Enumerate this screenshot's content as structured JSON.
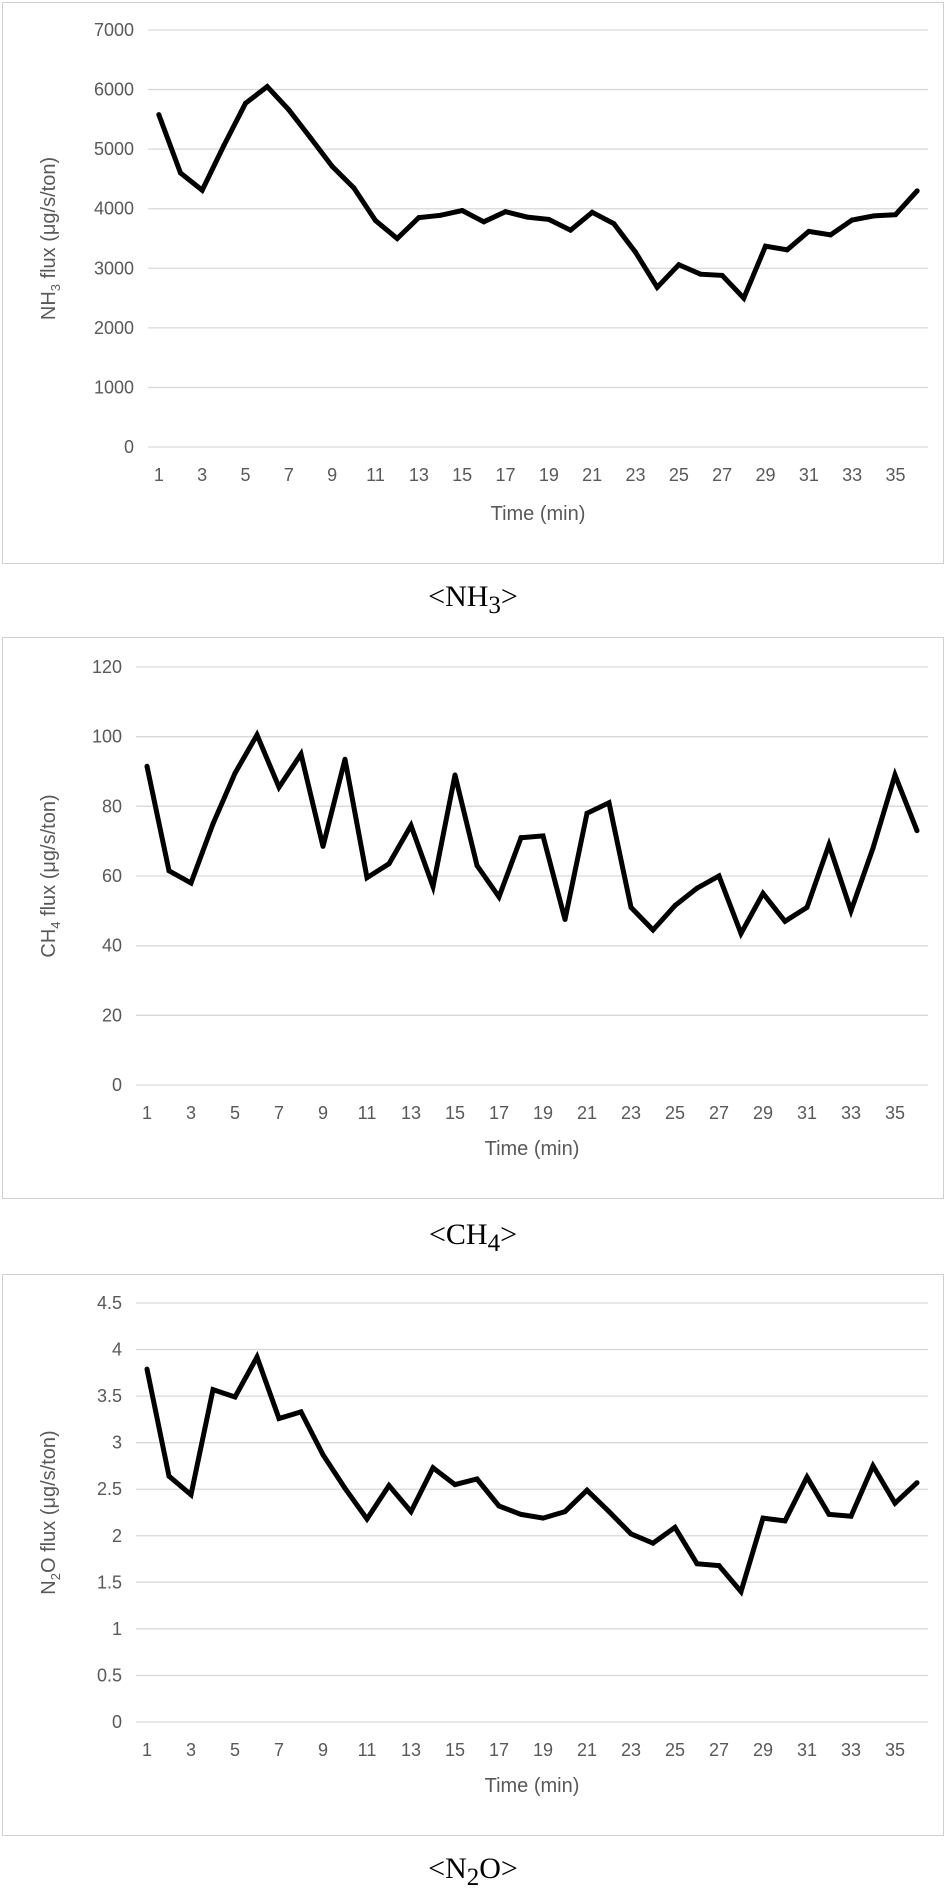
{
  "chart_data": [
    {
      "type": "line",
      "caption": {
        "before": "<NH",
        "sub": "3",
        "after": ">"
      },
      "xlabel": "Time (min)",
      "ylabel": {
        "before": "NH",
        "sub": "3",
        "after": " flux (μg/s/ton)"
      },
      "x": [
        1,
        2,
        3,
        4,
        5,
        6,
        7,
        8,
        9,
        10,
        11,
        12,
        13,
        14,
        15,
        16,
        17,
        18,
        19,
        20,
        21,
        22,
        23,
        24,
        25,
        26,
        27,
        28,
        29,
        30,
        31,
        32,
        33,
        34,
        35,
        36
      ],
      "x_tick_labels": [
        "1",
        "3",
        "5",
        "7",
        "9",
        "11",
        "13",
        "15",
        "17",
        "19",
        "21",
        "23",
        "25",
        "27",
        "29",
        "31",
        "33",
        "35"
      ],
      "ylim": [
        0,
        7000
      ],
      "y_ticks": [
        0,
        1000,
        2000,
        3000,
        4000,
        5000,
        6000,
        7000
      ],
      "grid": true,
      "line_color": "#000000",
      "series": [
        {
          "values": [
            5580,
            4600,
            4310,
            5060,
            5770,
            6050,
            5660,
            5190,
            4710,
            4350,
            3800,
            3500,
            3850,
            3890,
            3970,
            3780,
            3950,
            3860,
            3820,
            3640,
            3940,
            3750,
            3270,
            2680,
            3060,
            2900,
            2880,
            2500,
            3370,
            3310,
            3620,
            3560,
            3810,
            3880,
            3900,
            4300
          ]
        }
      ]
    },
    {
      "type": "line",
      "caption": {
        "before": "<CH",
        "sub": "4",
        "after": ">"
      },
      "xlabel": "Time (min)",
      "ylabel": {
        "before": "CH",
        "sub": "4",
        "after": " flux (μg/s/ton)"
      },
      "x": [
        1,
        2,
        3,
        4,
        5,
        6,
        7,
        8,
        9,
        10,
        11,
        12,
        13,
        14,
        15,
        16,
        17,
        18,
        19,
        20,
        21,
        22,
        23,
        24,
        25,
        26,
        27,
        28,
        29,
        30,
        31,
        32,
        33,
        34,
        35,
        36
      ],
      "x_tick_labels": [
        "1",
        "3",
        "5",
        "7",
        "9",
        "11",
        "13",
        "15",
        "17",
        "19",
        "21",
        "23",
        "25",
        "27",
        "29",
        "31",
        "33",
        "35"
      ],
      "ylim": [
        0,
        120
      ],
      "y_ticks": [
        0,
        20,
        40,
        60,
        80,
        100,
        120
      ],
      "grid": true,
      "line_color": "#000000",
      "series": [
        {
          "values": [
            91.5,
            61.5,
            58,
            75,
            89.5,
            100.5,
            85.5,
            95,
            68.5,
            93.5,
            59.5,
            63.5,
            74.5,
            57,
            89,
            63,
            54,
            71,
            71.5,
            47.5,
            78,
            81,
            51,
            44.5,
            51.5,
            56.5,
            60,
            43.5,
            55,
            47,
            51,
            69,
            50,
            68,
            89,
            73
          ]
        }
      ]
    },
    {
      "type": "line",
      "caption": {
        "before": "<N",
        "sub": "2",
        "after": "O>"
      },
      "xlabel": "Time (min)",
      "ylabel": {
        "before": "N",
        "sub": "2",
        "after": "O flux (μg/s/ton)"
      },
      "x": [
        1,
        2,
        3,
        4,
        5,
        6,
        7,
        8,
        9,
        10,
        11,
        12,
        13,
        14,
        15,
        16,
        17,
        18,
        19,
        20,
        21,
        22,
        23,
        24,
        25,
        26,
        27,
        28,
        29,
        30,
        31,
        32,
        33,
        34,
        35,
        36
      ],
      "x_tick_labels": [
        "1",
        "3",
        "5",
        "7",
        "9",
        "11",
        "13",
        "15",
        "17",
        "19",
        "21",
        "23",
        "25",
        "27",
        "29",
        "31",
        "33",
        "35"
      ],
      "ylim": [
        0,
        4.5
      ],
      "y_ticks": [
        0,
        0.5,
        1,
        1.5,
        2,
        2.5,
        3,
        3.5,
        4,
        4.5
      ],
      "y_tick_labels": [
        "0",
        "0.5",
        "1",
        "1.5",
        "2",
        "2.5",
        "3",
        "3.5",
        "4",
        "4.5"
      ],
      "grid": true,
      "line_color": "#000000",
      "series": [
        {
          "values": [
            3.79,
            2.64,
            2.44,
            3.57,
            3.49,
            3.92,
            3.26,
            3.33,
            2.87,
            2.51,
            2.18,
            2.54,
            2.26,
            2.73,
            2.55,
            2.61,
            2.32,
            2.23,
            2.19,
            2.26,
            2.49,
            2.26,
            2.02,
            1.92,
            2.09,
            1.7,
            1.68,
            1.4,
            2.19,
            2.16,
            2.63,
            2.23,
            2.21,
            2.75,
            2.35,
            2.57
          ]
        }
      ]
    }
  ]
}
